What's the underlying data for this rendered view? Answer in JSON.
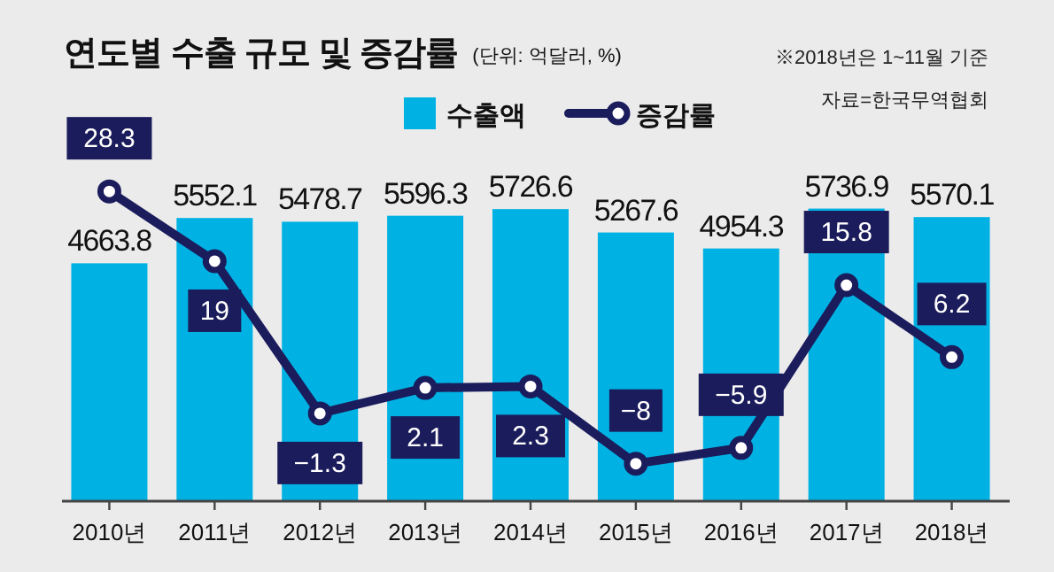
{
  "chart_data": {
    "type": "bar",
    "title": "연도별 수출 규모 및 증감률",
    "subtitle": "(단위: 억달러, %)",
    "annotations": [
      "※2018년은 1~11월 기준",
      "자료=한국무역협회"
    ],
    "categories": [
      "2010년",
      "2011년",
      "2012년",
      "2013년",
      "2014년",
      "2015년",
      "2016년",
      "2017년",
      "2018년"
    ],
    "series": [
      {
        "name": "수출액",
        "color": "#00b2e3",
        "values": [
          4663.8,
          5552.1,
          5478.7,
          5596.3,
          5726.6,
          5267.6,
          4954.3,
          5736.9,
          5570.1
        ]
      },
      {
        "name": "증감률",
        "type": "line",
        "axis": "y2",
        "color": "#1b1c5c",
        "values": [
          28.3,
          19,
          -1.3,
          2.1,
          2.3,
          -8,
          -5.9,
          15.8,
          6.2
        ],
        "value_labels": [
          "28.3",
          "19",
          "−1.3",
          "2.1",
          "2.3",
          "−8",
          "−5.9",
          "15.8",
          "6.2"
        ]
      }
    ],
    "ylim": [
      0,
      7500
    ],
    "y2lim": [
      -13,
      38
    ],
    "data_labels": true,
    "tick_labels": "x",
    "legend": "top",
    "marker": "circle",
    "line_style": "solid"
  }
}
